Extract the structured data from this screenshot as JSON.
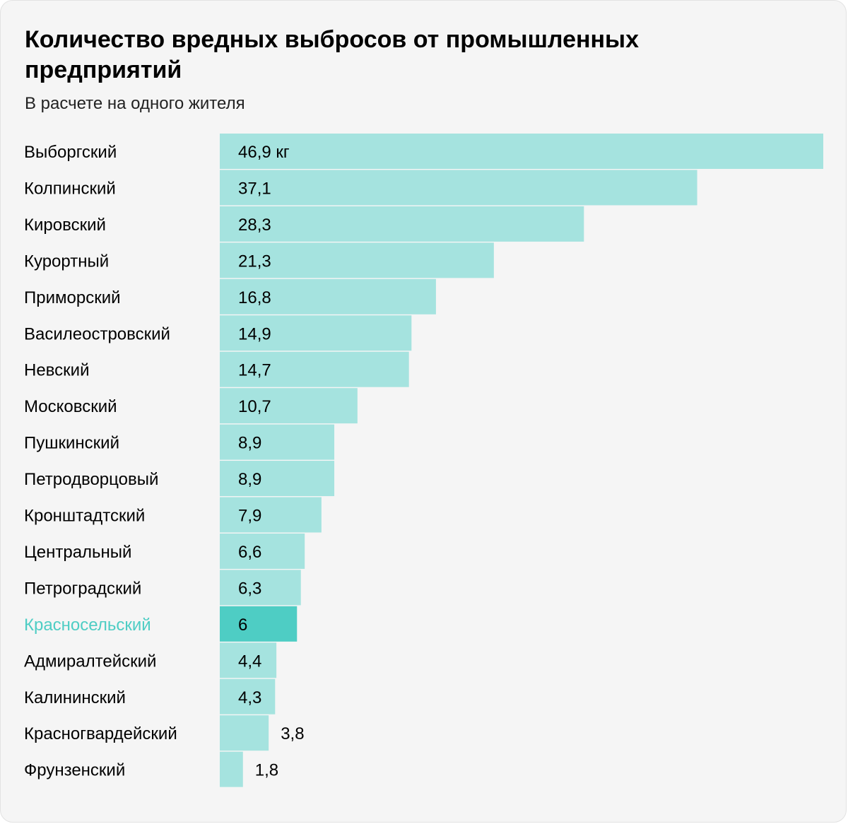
{
  "title": "Количество вредных выбросов от промышленных предприятий",
  "subtitle": "В расчете на одного жителя",
  "colors": {
    "bar": "#a5e3df",
    "bar_highlight": "#4ecdc4",
    "label_highlight": "#4ecdc4",
    "text": "#000000"
  },
  "chart_data": {
    "type": "bar",
    "orientation": "horizontal",
    "title": "Количество вредных выбросов от промышленных предприятий",
    "subtitle": "В расчете на одного жителя",
    "unit": "кг",
    "categories": [
      "Выборгский",
      "Колпинский",
      "Кировский",
      "Курортный",
      "Приморский",
      "Василеостровский",
      "Невский",
      "Московский",
      "Пушкинский",
      "Петродворцовый",
      "Кронштадтский",
      "Центральный",
      "Петроградский",
      "Красносельский",
      "Адмиралтейский",
      "Калининский",
      "Красногвардейский",
      "Фрунзенский"
    ],
    "values": [
      46.9,
      37.1,
      28.3,
      21.3,
      16.8,
      14.9,
      14.7,
      10.7,
      8.9,
      8.9,
      7.9,
      6.6,
      6.3,
      6,
      4.4,
      4.3,
      3.8,
      1.8
    ],
    "value_labels": [
      "46,9 кг",
      "37,1",
      "28,3",
      "21,3",
      "16,8",
      "14,9",
      "14,7",
      "10,7",
      "8,9",
      "8,9",
      "7,9",
      "6,6",
      "6,3",
      "6",
      "4,4",
      "4,3",
      "3,8",
      "1,8"
    ],
    "highlight": "Красносельский",
    "xlim": [
      0,
      46.9
    ],
    "grid": false,
    "legend": false
  }
}
